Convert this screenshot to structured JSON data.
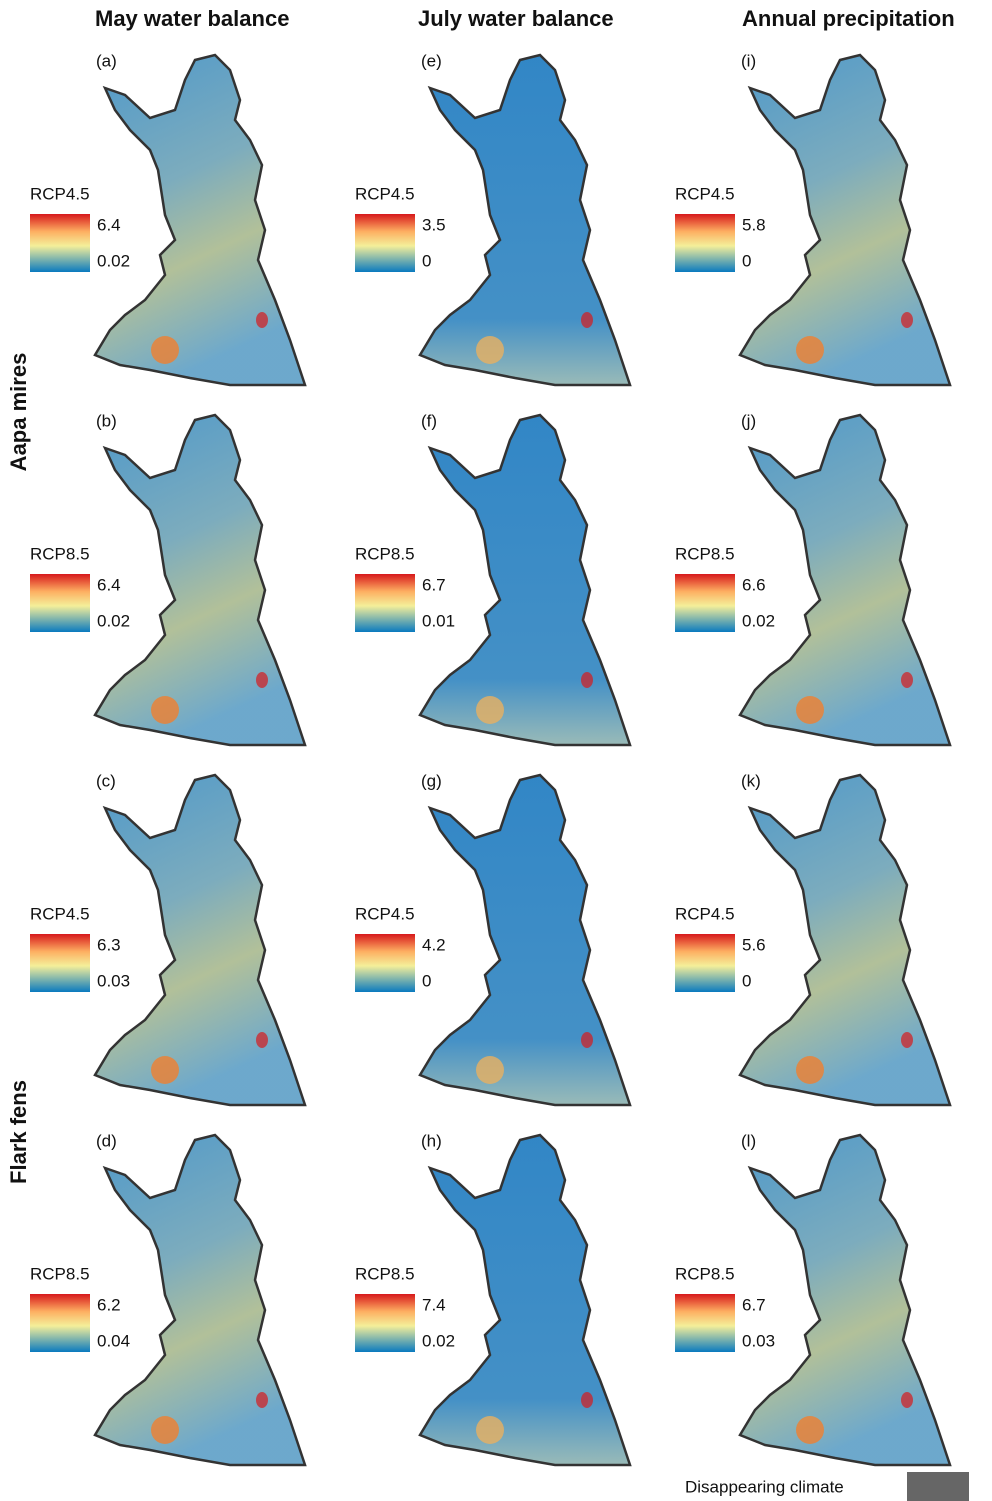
{
  "column_titles": [
    "May water balance",
    "July water balance",
    "Annual precipitation"
  ],
  "row_labels": [
    "Aapa mires",
    "Flark fens"
  ],
  "panels": [
    {
      "label": "(a)",
      "scenario": "RCP4.5",
      "max": 6.4,
      "min": 0.02
    },
    {
      "label": "(b)",
      "scenario": "RCP8.5",
      "max": 6.4,
      "min": 0.02
    },
    {
      "label": "(c)",
      "scenario": "RCP4.5",
      "max": 6.3,
      "min": 0.03
    },
    {
      "label": "(d)",
      "scenario": "RCP8.5",
      "max": 6.2,
      "min": 0.04
    },
    {
      "label": "(e)",
      "scenario": "RCP4.5",
      "max": 3.5,
      "min": 0
    },
    {
      "label": "(f)",
      "scenario": "RCP8.5",
      "max": 6.7,
      "min": 0.01
    },
    {
      "label": "(g)",
      "scenario": "RCP4.5",
      "max": 4.2,
      "min": 0
    },
    {
      "label": "(h)",
      "scenario": "RCP8.5",
      "max": 7.4,
      "min": 0.02
    },
    {
      "label": "(i)",
      "scenario": "RCP4.5",
      "max": 5.8,
      "min": 0
    },
    {
      "label": "(j)",
      "scenario": "RCP8.5",
      "max": 6.6,
      "min": 0.02
    },
    {
      "label": "(k)",
      "scenario": "RCP4.5",
      "max": 5.6,
      "min": 0
    },
    {
      "label": "(l)",
      "scenario": "RCP8.5",
      "max": 6.7,
      "min": 0.03
    }
  ],
  "legend": {
    "label": "Disappearing climate"
  }
}
